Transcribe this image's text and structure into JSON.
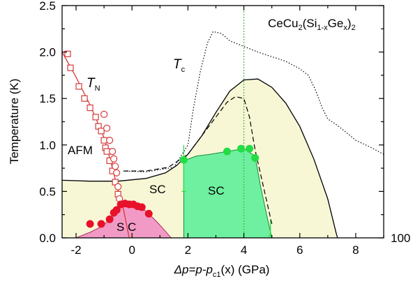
{
  "chart_data": {
    "type": "scatter",
    "xlim": [
      -2.5,
      9
    ],
    "ylim": [
      0,
      2.5
    ],
    "x_ticks": [
      "-2",
      "0",
      "2",
      "4",
      "6",
      "8"
    ],
    "y_ticks": [
      "0.0",
      "0.5",
      "1.0",
      "1.5",
      "2.0",
      "2.5"
    ],
    "right_label": "100",
    "ylabel": "Temperature (K)",
    "xlabel_parts": {
      "pre": "Δp=p-p",
      "sub": "c1",
      "post": "(x) (GPa)"
    },
    "formula": {
      "a": "CeCu",
      "b": "2",
      "c": "(Si",
      "d": "1-x",
      "e": "Ge",
      "f": "x",
      "g": ")",
      "h": "2"
    },
    "labels": {
      "tn": "T",
      "tn_sub": "N",
      "tc": "T",
      "tc_sub": "c",
      "afm": "AFM",
      "sc_left": "SC",
      "sc_center": "SC",
      "sc_lower": "S C"
    },
    "vertical_line_x": 4.0,
    "colors": {
      "tn": "#d63a3a",
      "sc1": "#e8112a",
      "sc1_fill": "#f29ac6",
      "sc2": "#22dd44",
      "sc2_fill": "#6ef0a0",
      "dome_fill": "#f7f7d6",
      "vline": "#44bb44"
    },
    "series": [
      {
        "key": "tn",
        "marker": "square",
        "points": [
          [
            -2.3,
            1.98
          ],
          [
            -2.2,
            1.83
          ],
          [
            -1.9,
            1.63
          ],
          [
            -1.7,
            1.5
          ],
          [
            -1.5,
            1.4
          ],
          [
            -1.3,
            1.3
          ],
          [
            -1.2,
            1.2
          ],
          [
            -1.1,
            1.15
          ],
          [
            -1.0,
            1.05
          ],
          [
            -0.95,
            0.97
          ],
          [
            -0.9,
            0.93
          ],
          [
            -0.8,
            0.83
          ],
          [
            -0.7,
            0.72
          ],
          [
            -0.6,
            0.6
          ],
          [
            -0.5,
            0.47
          ]
        ]
      },
      {
        "key": "tn",
        "marker": "circle-open",
        "points": [
          [
            -1.0,
            1.33
          ],
          [
            -0.9,
            1.18
          ],
          [
            -0.8,
            1.05
          ],
          [
            -0.7,
            0.93
          ],
          [
            -0.65,
            0.85
          ],
          [
            -0.6,
            0.77
          ],
          [
            -0.55,
            0.7
          ],
          [
            -0.5,
            0.55
          ],
          [
            -0.45,
            0.42
          ]
        ]
      },
      {
        "key": "sc1",
        "marker": "circle-filled",
        "points": [
          [
            -1.5,
            0.15
          ],
          [
            -1.1,
            0.15
          ],
          [
            -0.8,
            0.2
          ],
          [
            -0.65,
            0.27
          ],
          [
            -0.55,
            0.3
          ],
          [
            -0.4,
            0.36
          ],
          [
            -0.25,
            0.37
          ],
          [
            -0.1,
            0.36
          ],
          [
            0.05,
            0.36
          ],
          [
            0.2,
            0.34
          ],
          [
            0.35,
            0.33
          ],
          [
            0.6,
            0.26
          ]
        ]
      },
      {
        "key": "sc2",
        "marker": "circle-filled",
        "points": [
          [
            1.85,
            0.84
          ],
          [
            3.4,
            0.93
          ],
          [
            3.9,
            0.96
          ],
          [
            4.2,
            0.96
          ],
          [
            4.4,
            0.86
          ]
        ]
      }
    ],
    "curves": {
      "tn_line": [
        [
          -2.5,
          2.0
        ],
        [
          -2.0,
          1.73
        ],
        [
          -1.5,
          1.43
        ],
        [
          -1.0,
          1.08
        ],
        [
          -0.7,
          0.75
        ],
        [
          -0.45,
          0.45
        ],
        [
          -0.3,
          0.3
        ],
        [
          -0.1,
          0.0
        ]
      ],
      "tc_dotted": [
        [
          -0.3,
          0.72
        ],
        [
          0.5,
          0.71
        ],
        [
          1.5,
          0.76
        ],
        [
          2.0,
          1.0
        ],
        [
          2.2,
          1.4
        ],
        [
          2.45,
          1.8
        ],
        [
          2.7,
          2.1
        ],
        [
          2.9,
          2.22
        ],
        [
          3.2,
          2.2
        ],
        [
          3.5,
          2.12
        ],
        [
          4.0,
          2.06
        ],
        [
          4.5,
          2.0
        ],
        [
          5.0,
          1.95
        ],
        [
          5.5,
          1.9
        ],
        [
          6.0,
          1.82
        ],
        [
          6.3,
          1.75
        ],
        [
          6.55,
          1.6
        ],
        [
          6.8,
          1.4
        ],
        [
          7.0,
          1.28
        ],
        [
          7.3,
          1.22
        ],
        [
          7.6,
          1.15
        ],
        [
          8.0,
          1.05
        ],
        [
          8.5,
          0.98
        ],
        [
          9.0,
          0.9
        ]
      ],
      "solid_dome": [
        [
          -2.5,
          0.62
        ],
        [
          -1.5,
          0.61
        ],
        [
          -0.5,
          0.61
        ],
        [
          0.5,
          0.64
        ],
        [
          1.2,
          0.7
        ],
        [
          1.6,
          0.78
        ],
        [
          2.0,
          0.9
        ],
        [
          2.5,
          1.1
        ],
        [
          3.0,
          1.35
        ],
        [
          3.5,
          1.58
        ],
        [
          4.0,
          1.7
        ],
        [
          4.5,
          1.71
        ],
        [
          5.0,
          1.62
        ],
        [
          5.5,
          1.45
        ],
        [
          6.0,
          1.2
        ],
        [
          6.5,
          0.85
        ],
        [
          7.0,
          0.42
        ],
        [
          7.3,
          0.05
        ],
        [
          7.35,
          0.0
        ]
      ],
      "dashed_dome": [
        [
          -0.3,
          0.72
        ],
        [
          0.5,
          0.72
        ],
        [
          1.3,
          0.76
        ],
        [
          2.0,
          0.9
        ],
        [
          2.5,
          1.1
        ],
        [
          3.0,
          1.3
        ],
        [
          3.4,
          1.46
        ],
        [
          3.7,
          1.52
        ],
        [
          4.0,
          1.5
        ],
        [
          4.2,
          1.3
        ],
        [
          4.4,
          0.95
        ],
        [
          4.7,
          0.55
        ],
        [
          5.0,
          0.15
        ]
      ],
      "sc1_fill": [
        [
          -2.0,
          0.0
        ],
        [
          -1.5,
          0.06
        ],
        [
          -1.1,
          0.12
        ],
        [
          -0.7,
          0.22
        ],
        [
          -0.4,
          0.33
        ],
        [
          -0.1,
          0.37
        ],
        [
          0.3,
          0.34
        ],
        [
          0.6,
          0.26
        ],
        [
          0.9,
          0.17
        ],
        [
          1.2,
          0.07
        ],
        [
          1.4,
          0.0
        ]
      ],
      "sc2_fill": [
        [
          1.85,
          0.0
        ],
        [
          1.85,
          0.83
        ],
        [
          2.3,
          0.88
        ],
        [
          2.8,
          0.9
        ],
        [
          3.4,
          0.93
        ],
        [
          4.0,
          0.96
        ],
        [
          4.4,
          0.88
        ],
        [
          4.6,
          0.55
        ],
        [
          4.85,
          0.2
        ],
        [
          5.0,
          0.0
        ]
      ],
      "sc2_errorbars": [
        [
          1.85,
          0.5,
          1.0
        ],
        [
          4.95,
          0.02,
          0.2
        ]
      ]
    }
  }
}
